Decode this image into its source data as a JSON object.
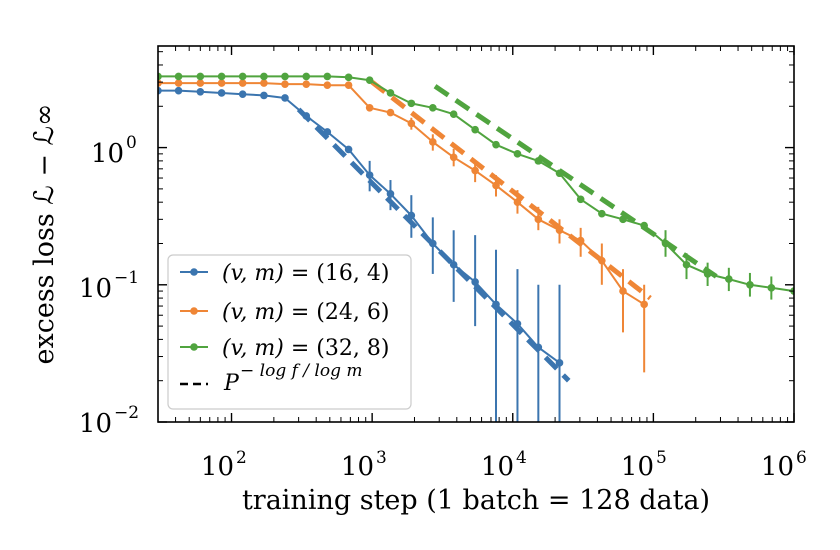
{
  "chart_data": {
    "type": "line",
    "title": "",
    "xlabel": "training step (1 batch = 128 data)",
    "ylabel": "excess loss ℒ − ℒ∞",
    "xscale": "log",
    "yscale": "log",
    "xlim": [
      30,
      1000000
    ],
    "ylim": [
      0.01,
      5.5
    ],
    "x_ticks": [
      {
        "base": "10",
        "exp": "2",
        "value": 100
      },
      {
        "base": "10",
        "exp": "3",
        "value": 1000
      },
      {
        "base": "10",
        "exp": "4",
        "value": 10000
      },
      {
        "base": "10",
        "exp": "5",
        "value": 100000
      },
      {
        "base": "10",
        "exp": "6",
        "value": 1000000
      }
    ],
    "y_ticks": [
      {
        "base": "10",
        "exp": "0",
        "value": 1
      },
      {
        "base": "10",
        "exp": "−1",
        "value": 0.1
      },
      {
        "base": "10",
        "exp": "−2",
        "value": 0.01
      }
    ],
    "series": [
      {
        "name": "(v, m) = (16, 4)",
        "label_prefix": "(v, m) = ",
        "label_value": "(16, 4)",
        "color": "#3b75af",
        "x": [
          30,
          42,
          60,
          85,
          120,
          170,
          240,
          340,
          480,
          680,
          960,
          1350,
          1900,
          2700,
          3800,
          5400,
          7600,
          10800,
          15200,
          21500
        ],
        "y": [
          2.6,
          2.6,
          2.55,
          2.5,
          2.45,
          2.4,
          2.3,
          1.7,
          1.3,
          0.97,
          0.63,
          0.46,
          0.32,
          0.2,
          0.14,
          0.105,
          0.072,
          0.052,
          0.035,
          0.027
        ],
        "err_lo": [
          null,
          null,
          null,
          null,
          null,
          null,
          null,
          null,
          null,
          null,
          0.48,
          0.35,
          0.22,
          0.12,
          0.075,
          0.05,
          0.0085,
          0.0085,
          0.0085,
          0.0085
        ],
        "err_hi": [
          null,
          null,
          null,
          null,
          null,
          null,
          null,
          null,
          null,
          null,
          0.8,
          0.58,
          0.45,
          0.31,
          0.25,
          0.23,
          0.18,
          0.13,
          0.1,
          0.1
        ],
        "fit": {
          "x": [
            300,
            25000
          ],
          "y": [
            1.9,
            0.02
          ]
        }
      },
      {
        "name": "(v, m) = (24, 6)",
        "label_prefix": "(v, m) = ",
        "label_value": "(24, 6)",
        "color": "#ef8636",
        "x": [
          30,
          42,
          60,
          85,
          120,
          170,
          240,
          340,
          480,
          680,
          960,
          1350,
          1900,
          2700,
          3800,
          5400,
          7600,
          10800,
          15200,
          21500,
          30400,
          43000,
          60800,
          86000
        ],
        "y": [
          2.95,
          2.95,
          2.95,
          2.95,
          2.95,
          2.95,
          2.9,
          2.9,
          2.85,
          2.85,
          1.95,
          1.8,
          1.5,
          1.1,
          0.85,
          0.68,
          0.53,
          0.4,
          0.3,
          0.25,
          0.21,
          0.15,
          0.09,
          0.072
        ],
        "err_lo": [
          null,
          null,
          null,
          null,
          null,
          null,
          null,
          null,
          null,
          null,
          null,
          null,
          1.35,
          0.95,
          0.73,
          0.56,
          0.44,
          0.33,
          0.25,
          0.2,
          0.16,
          0.1,
          0.045,
          0.023
        ],
        "err_hi": [
          null,
          null,
          null,
          null,
          null,
          null,
          null,
          null,
          null,
          null,
          null,
          null,
          1.65,
          1.25,
          0.98,
          0.8,
          0.63,
          0.49,
          0.37,
          0.3,
          0.26,
          0.2,
          0.13,
          0.1
        ],
        "fit": {
          "x": [
            1000,
            95000
          ],
          "y": [
            3.0,
            0.08
          ]
        }
      },
      {
        "name": "(v, m) = (32, 8)",
        "label_prefix": "(v, m) = ",
        "label_value": "(32, 8)",
        "color": "#50a43f",
        "x": [
          30,
          42,
          60,
          85,
          120,
          170,
          240,
          340,
          480,
          680,
          960,
          1350,
          1900,
          2700,
          3800,
          5400,
          7600,
          10800,
          15200,
          21500,
          30400,
          43000,
          60800,
          86000,
          122000,
          172000,
          243000,
          344000,
          486000,
          690000,
          1000000
        ],
        "y": [
          3.3,
          3.3,
          3.3,
          3.3,
          3.3,
          3.3,
          3.3,
          3.3,
          3.3,
          3.25,
          3.1,
          2.5,
          2.1,
          1.95,
          1.75,
          1.35,
          1.05,
          0.9,
          0.8,
          0.65,
          0.42,
          0.33,
          0.3,
          0.27,
          0.2,
          0.14,
          0.12,
          0.11,
          0.1,
          0.095,
          0.09
        ],
        "err_lo": [
          null,
          null,
          null,
          null,
          null,
          null,
          null,
          null,
          null,
          null,
          null,
          null,
          null,
          null,
          null,
          null,
          null,
          null,
          null,
          null,
          null,
          null,
          null,
          null,
          0.16,
          0.11,
          0.098,
          0.09,
          0.082,
          0.078,
          null
        ],
        "err_hi": [
          null,
          null,
          null,
          null,
          null,
          null,
          null,
          null,
          null,
          null,
          null,
          null,
          null,
          null,
          null,
          null,
          null,
          null,
          null,
          null,
          null,
          null,
          null,
          null,
          0.25,
          0.17,
          0.145,
          0.133,
          0.122,
          0.115,
          null
        ],
        "fit": {
          "x": [
            2800,
            280000
          ],
          "y": [
            2.8,
            0.115
          ]
        }
      }
    ],
    "legend": {
      "position": "lower-left",
      "fit_label_base": "P",
      "fit_label_exp": "− log f / log m"
    }
  }
}
